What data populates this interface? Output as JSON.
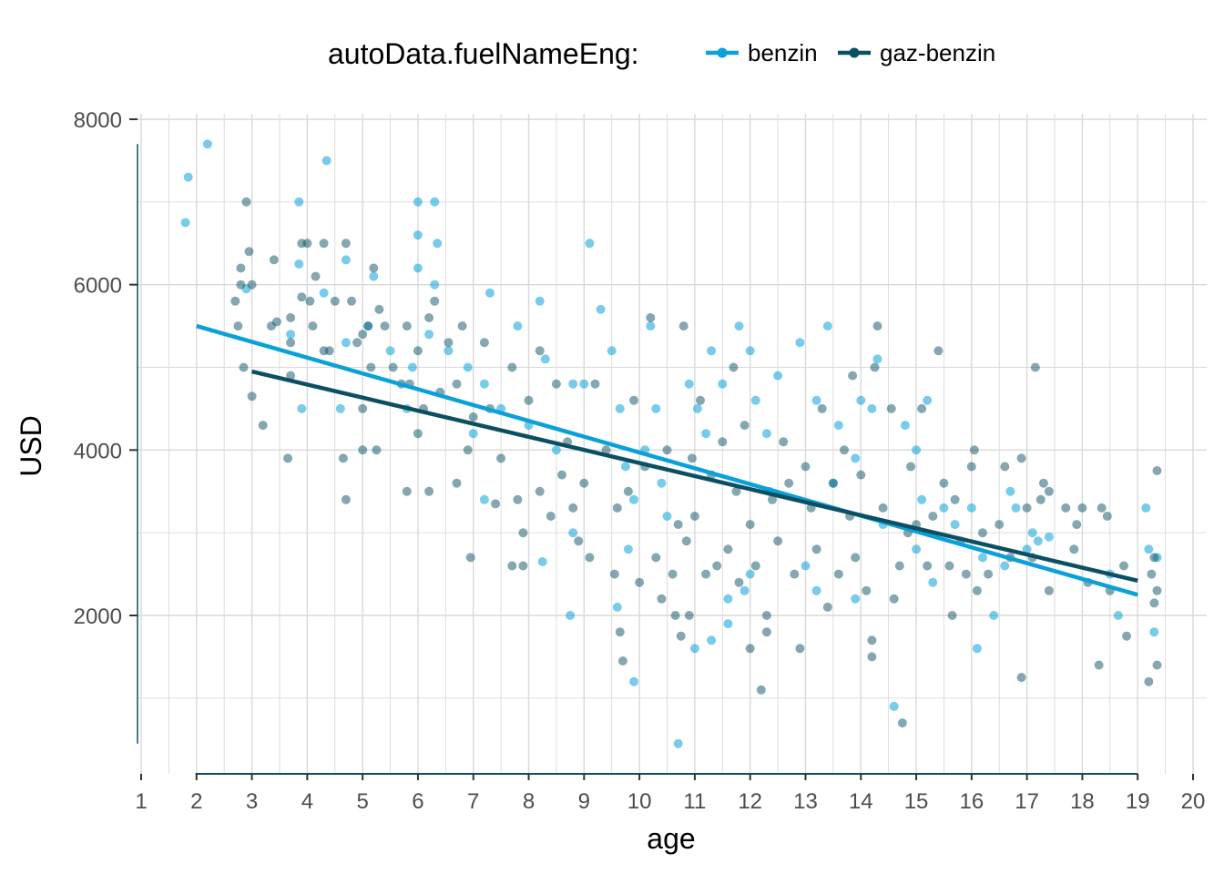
{
  "chart_data": {
    "type": "scatter",
    "title": "",
    "xlabel": "age",
    "ylabel": "USD",
    "xlim": [
      0.95,
      20.1
    ],
    "ylim": [
      100,
      8000
    ],
    "x_ticks": [
      1,
      2,
      3,
      4,
      5,
      6,
      7,
      8,
      9,
      10,
      11,
      12,
      13,
      14,
      15,
      16,
      17,
      18,
      19,
      20
    ],
    "y_ticks": [
      2000,
      4000,
      6000,
      8000
    ],
    "grid": true,
    "legend": {
      "title": "autoData.fuelNameEng:",
      "position": "top",
      "entries": [
        "benzin",
        "gaz-benzin"
      ]
    },
    "series": [
      {
        "name": "benzin",
        "color": "#0aa0d8",
        "trend_line": {
          "x": [
            2,
            19
          ],
          "y": [
            5500,
            2250
          ]
        },
        "points": [
          [
            1.8,
            6750
          ],
          [
            1.85,
            7300
          ],
          [
            2.2,
            7700
          ],
          [
            2.9,
            5950
          ],
          [
            3.7,
            5400
          ],
          [
            3.85,
            6250
          ],
          [
            3.85,
            7000
          ],
          [
            3.9,
            4500
          ],
          [
            4.35,
            7500
          ],
          [
            4.3,
            5900
          ],
          [
            4.7,
            6300
          ],
          [
            4.7,
            5300
          ],
          [
            4.6,
            4500
          ],
          [
            5.2,
            6100
          ],
          [
            5.1,
            5500
          ],
          [
            5.5,
            5200
          ],
          [
            5.9,
            5000
          ],
          [
            6.0,
            7000
          ],
          [
            6.3,
            7000
          ],
          [
            6.35,
            6500
          ],
          [
            6.0,
            6600
          ],
          [
            6.0,
            6200
          ],
          [
            6.3,
            6000
          ],
          [
            6.2,
            5400
          ],
          [
            5.8,
            4500
          ],
          [
            6.55,
            5200
          ],
          [
            6.9,
            5000
          ],
          [
            7.3,
            5900
          ],
          [
            7.2,
            4800
          ],
          [
            7.0,
            4200
          ],
          [
            7.5,
            4500
          ],
          [
            7.8,
            5500
          ],
          [
            8.2,
            5800
          ],
          [
            8.3,
            5100
          ],
          [
            8.0,
            4300
          ],
          [
            8.5,
            4000
          ],
          [
            8.8,
            4800
          ],
          [
            9.1,
            6500
          ],
          [
            9.3,
            5700
          ],
          [
            9.0,
            4800
          ],
          [
            8.8,
            3000
          ],
          [
            8.75,
            2000
          ],
          [
            8.25,
            2650
          ],
          [
            7.2,
            3400
          ],
          [
            9.5,
            5200
          ],
          [
            9.65,
            4500
          ],
          [
            9.75,
            3800
          ],
          [
            9.9,
            3400
          ],
          [
            9.8,
            2800
          ],
          [
            9.6,
            2100
          ],
          [
            9.9,
            1200
          ],
          [
            10.2,
            5500
          ],
          [
            10.3,
            4500
          ],
          [
            10.1,
            4000
          ],
          [
            10.4,
            3600
          ],
          [
            10.5,
            3200
          ],
          [
            10.7,
            450
          ],
          [
            10.9,
            4800
          ],
          [
            11.05,
            4500
          ],
          [
            11.2,
            4200
          ],
          [
            11.3,
            5200
          ],
          [
            11.5,
            4800
          ],
          [
            11.0,
            1600
          ],
          [
            11.3,
            1700
          ],
          [
            11.6,
            2200
          ],
          [
            11.6,
            1900
          ],
          [
            11.8,
            5500
          ],
          [
            12.0,
            5200
          ],
          [
            12.1,
            4600
          ],
          [
            12.3,
            4200
          ],
          [
            12.35,
            3500
          ],
          [
            12.0,
            2500
          ],
          [
            11.9,
            2300
          ],
          [
            12.5,
            4900
          ],
          [
            12.9,
            5300
          ],
          [
            13.2,
            4600
          ],
          [
            13.4,
            5500
          ],
          [
            13.5,
            3600
          ],
          [
            13.2,
            2300
          ],
          [
            13.0,
            2600
          ],
          [
            13.6,
            4300
          ],
          [
            13.9,
            3900
          ],
          [
            14.0,
            4600
          ],
          [
            14.2,
            4500
          ],
          [
            14.3,
            5100
          ],
          [
            13.9,
            2200
          ],
          [
            14.4,
            3100
          ],
          [
            14.6,
            900
          ],
          [
            14.8,
            4300
          ],
          [
            15.0,
            4000
          ],
          [
            15.2,
            4600
          ],
          [
            15.1,
            3400
          ],
          [
            15.0,
            2800
          ],
          [
            15.3,
            2400
          ],
          [
            15.5,
            3300
          ],
          [
            15.7,
            3100
          ],
          [
            16.0,
            3300
          ],
          [
            16.1,
            1600
          ],
          [
            16.2,
            2700
          ],
          [
            16.4,
            2000
          ],
          [
            16.6,
            2600
          ],
          [
            16.7,
            3500
          ],
          [
            16.8,
            3300
          ],
          [
            17.0,
            2800
          ],
          [
            17.1,
            3000
          ],
          [
            17.2,
            2900
          ],
          [
            17.4,
            2950
          ],
          [
            18.5,
            2500
          ],
          [
            18.65,
            2000
          ],
          [
            19.15,
            3300
          ],
          [
            19.2,
            2800
          ],
          [
            19.35,
            2700
          ],
          [
            19.3,
            1800
          ]
        ]
      },
      {
        "name": "gaz-benzin",
        "color": "#0b4f63",
        "trend_line": {
          "x": [
            3,
            19
          ],
          "y": [
            4950,
            2420
          ]
        },
        "points": [
          [
            2.7,
            5800
          ],
          [
            2.75,
            5500
          ],
          [
            2.8,
            6200
          ],
          [
            2.8,
            6000
          ],
          [
            2.85,
            5000
          ],
          [
            2.9,
            7000
          ],
          [
            2.95,
            6400
          ],
          [
            3.0,
            6000
          ],
          [
            3.0,
            4650
          ],
          [
            3.2,
            4300
          ],
          [
            3.35,
            5500
          ],
          [
            3.45,
            5550
          ],
          [
            3.4,
            6300
          ],
          [
            3.7,
            5600
          ],
          [
            3.7,
            5300
          ],
          [
            3.7,
            4900
          ],
          [
            3.65,
            3900
          ],
          [
            3.9,
            6500
          ],
          [
            3.9,
            5850
          ],
          [
            4.0,
            6500
          ],
          [
            4.05,
            5800
          ],
          [
            4.1,
            5500
          ],
          [
            4.15,
            6100
          ],
          [
            4.3,
            6500
          ],
          [
            4.3,
            5200
          ],
          [
            4.4,
            5200
          ],
          [
            4.5,
            5800
          ],
          [
            4.65,
            3900
          ],
          [
            4.7,
            3400
          ],
          [
            4.7,
            6500
          ],
          [
            4.8,
            5800
          ],
          [
            4.9,
            5300
          ],
          [
            5.0,
            5400
          ],
          [
            5.0,
            4500
          ],
          [
            5.0,
            4000
          ],
          [
            5.1,
            5500
          ],
          [
            5.15,
            5000
          ],
          [
            5.2,
            6200
          ],
          [
            5.25,
            4000
          ],
          [
            5.3,
            5700
          ],
          [
            5.4,
            5500
          ],
          [
            5.55,
            5000
          ],
          [
            5.7,
            4800
          ],
          [
            5.8,
            5500
          ],
          [
            5.8,
            3500
          ],
          [
            5.85,
            4800
          ],
          [
            6.0,
            5200
          ],
          [
            6.0,
            4200
          ],
          [
            6.1,
            4500
          ],
          [
            6.2,
            5600
          ],
          [
            6.2,
            3500
          ],
          [
            6.3,
            5800
          ],
          [
            6.4,
            4700
          ],
          [
            6.55,
            5300
          ],
          [
            6.7,
            4800
          ],
          [
            6.7,
            3600
          ],
          [
            6.8,
            5500
          ],
          [
            6.9,
            4000
          ],
          [
            6.95,
            2700
          ],
          [
            7.0,
            4400
          ],
          [
            7.2,
            5300
          ],
          [
            7.3,
            4500
          ],
          [
            7.4,
            3350
          ],
          [
            7.5,
            3900
          ],
          [
            7.7,
            5000
          ],
          [
            7.7,
            2600
          ],
          [
            7.8,
            3400
          ],
          [
            7.9,
            3000
          ],
          [
            7.9,
            2600
          ],
          [
            8.0,
            4600
          ],
          [
            8.2,
            5200
          ],
          [
            8.2,
            3500
          ],
          [
            8.4,
            3200
          ],
          [
            8.5,
            4800
          ],
          [
            8.6,
            3700
          ],
          [
            8.7,
            4100
          ],
          [
            8.8,
            3300
          ],
          [
            8.9,
            2900
          ],
          [
            9.0,
            3600
          ],
          [
            9.1,
            2700
          ],
          [
            9.2,
            4800
          ],
          [
            9.4,
            4000
          ],
          [
            9.55,
            2500
          ],
          [
            9.6,
            3300
          ],
          [
            9.65,
            1800
          ],
          [
            9.7,
            1450
          ],
          [
            9.8,
            3500
          ],
          [
            9.9,
            4600
          ],
          [
            10.0,
            2400
          ],
          [
            10.1,
            3800
          ],
          [
            10.2,
            5600
          ],
          [
            10.3,
            2700
          ],
          [
            10.4,
            2200
          ],
          [
            10.5,
            4000
          ],
          [
            10.6,
            2500
          ],
          [
            10.65,
            2000
          ],
          [
            10.7,
            3100
          ],
          [
            10.75,
            1750
          ],
          [
            10.8,
            5500
          ],
          [
            10.85,
            2900
          ],
          [
            10.9,
            2000
          ],
          [
            10.95,
            3900
          ],
          [
            11.0,
            3200
          ],
          [
            11.1,
            4600
          ],
          [
            11.2,
            2500
          ],
          [
            11.3,
            3700
          ],
          [
            11.4,
            2600
          ],
          [
            11.5,
            4100
          ],
          [
            11.6,
            2800
          ],
          [
            11.7,
            5000
          ],
          [
            11.75,
            3500
          ],
          [
            11.8,
            2400
          ],
          [
            11.9,
            4300
          ],
          [
            12.0,
            3100
          ],
          [
            12.0,
            1600
          ],
          [
            12.1,
            2600
          ],
          [
            12.2,
            1100
          ],
          [
            12.3,
            2000
          ],
          [
            12.3,
            1800
          ],
          [
            12.4,
            3400
          ],
          [
            12.5,
            2900
          ],
          [
            12.6,
            4100
          ],
          [
            12.7,
            3600
          ],
          [
            12.8,
            2500
          ],
          [
            12.9,
            1600
          ],
          [
            13.0,
            3800
          ],
          [
            13.1,
            3300
          ],
          [
            13.2,
            2800
          ],
          [
            13.3,
            4500
          ],
          [
            13.4,
            2100
          ],
          [
            13.5,
            3600
          ],
          [
            13.6,
            2500
          ],
          [
            13.7,
            4000
          ],
          [
            13.8,
            3200
          ],
          [
            13.85,
            4900
          ],
          [
            13.9,
            2700
          ],
          [
            14.0,
            3700
          ],
          [
            14.1,
            2300
          ],
          [
            14.2,
            1500
          ],
          [
            14.2,
            1700
          ],
          [
            14.25,
            5000
          ],
          [
            14.3,
            5500
          ],
          [
            14.4,
            3300
          ],
          [
            14.55,
            4500
          ],
          [
            14.6,
            2200
          ],
          [
            14.7,
            2600
          ],
          [
            14.75,
            700
          ],
          [
            14.85,
            3000
          ],
          [
            14.9,
            3800
          ],
          [
            15.0,
            3100
          ],
          [
            15.1,
            4500
          ],
          [
            15.2,
            2600
          ],
          [
            15.3,
            3200
          ],
          [
            15.4,
            5200
          ],
          [
            15.5,
            3600
          ],
          [
            15.6,
            2600
          ],
          [
            15.65,
            2000
          ],
          [
            15.7,
            3400
          ],
          [
            15.8,
            2900
          ],
          [
            15.9,
            2500
          ],
          [
            16.0,
            3800
          ],
          [
            16.05,
            4000
          ],
          [
            16.1,
            2300
          ],
          [
            16.2,
            3000
          ],
          [
            16.3,
            2500
          ],
          [
            16.5,
            3100
          ],
          [
            16.6,
            3800
          ],
          [
            16.7,
            2700
          ],
          [
            16.9,
            1250
          ],
          [
            16.9,
            3900
          ],
          [
            17.0,
            3300
          ],
          [
            17.1,
            2700
          ],
          [
            17.15,
            5000
          ],
          [
            17.25,
            3400
          ],
          [
            17.3,
            3600
          ],
          [
            17.4,
            3500
          ],
          [
            17.4,
            2300
          ],
          [
            17.7,
            3300
          ],
          [
            17.85,
            2800
          ],
          [
            17.9,
            3100
          ],
          [
            18.0,
            3300
          ],
          [
            18.1,
            2400
          ],
          [
            18.3,
            1400
          ],
          [
            18.35,
            3300
          ],
          [
            18.45,
            3200
          ],
          [
            18.5,
            2300
          ],
          [
            18.75,
            2600
          ],
          [
            18.8,
            1750
          ],
          [
            19.2,
            1200
          ],
          [
            19.25,
            2500
          ],
          [
            19.3,
            2150
          ],
          [
            19.3,
            2700
          ],
          [
            19.35,
            1400
          ],
          [
            19.35,
            2300
          ],
          [
            19.35,
            3750
          ]
        ]
      }
    ]
  }
}
